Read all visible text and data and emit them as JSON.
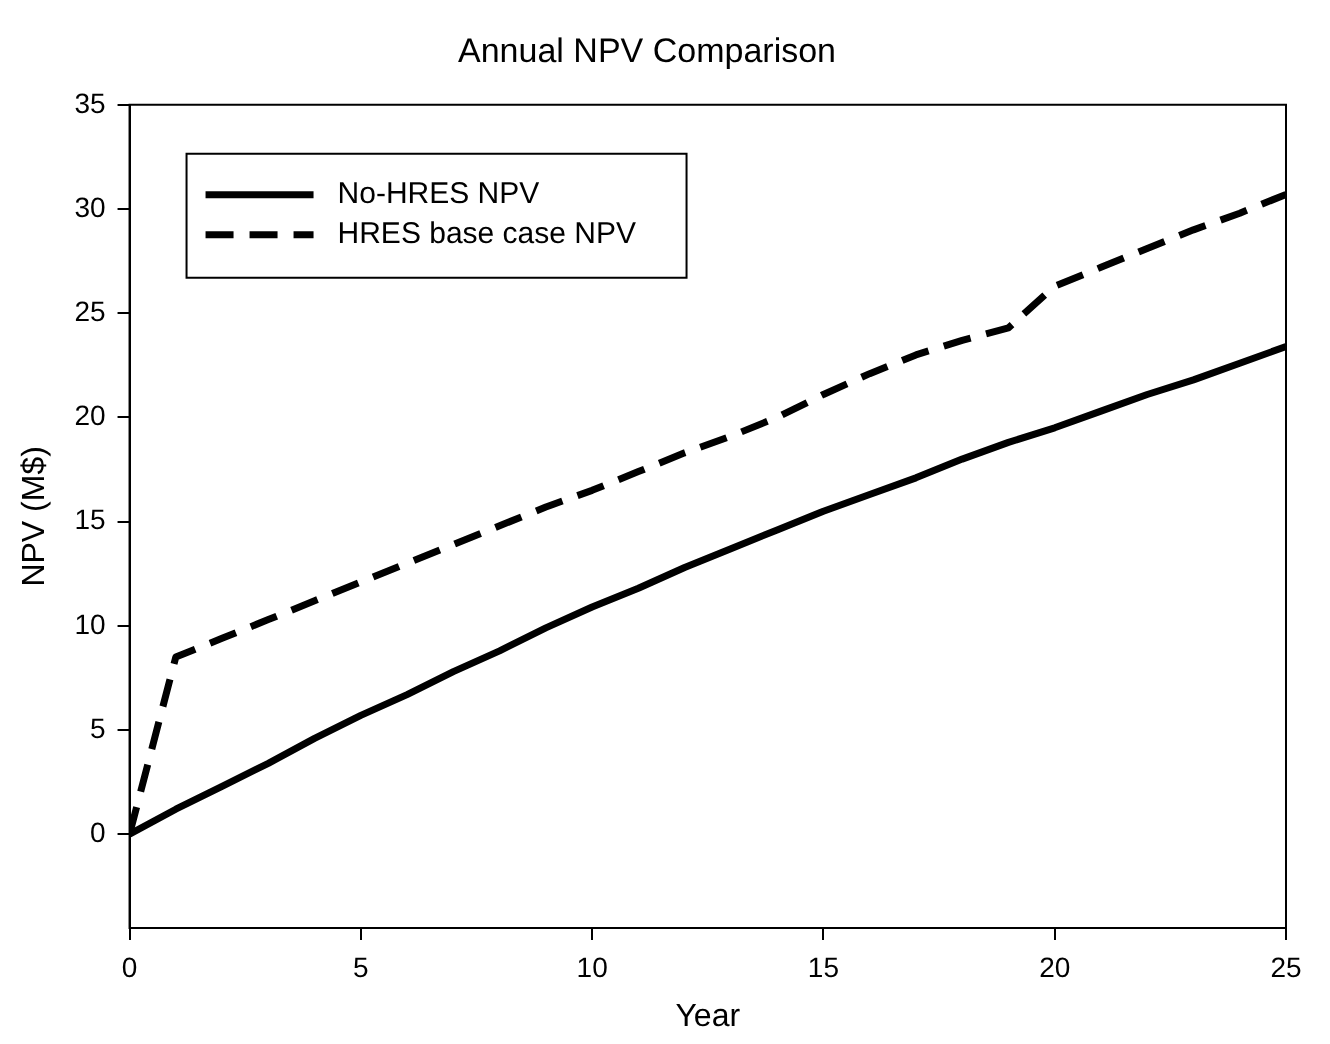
{
  "chart_data": {
    "type": "line",
    "title": "Annual NPV Comparison",
    "xlabel": "Year",
    "ylabel": "NPV (M$)",
    "x": [
      0,
      1,
      2,
      3,
      4,
      5,
      6,
      7,
      8,
      9,
      10,
      11,
      12,
      13,
      14,
      15,
      16,
      17,
      18,
      19,
      20,
      21,
      22,
      23,
      24,
      25
    ],
    "series": [
      {
        "name": "No-HRES NPV",
        "color": "#000000",
        "line_style": "solid",
        "values": [
          0,
          1.2,
          2.3,
          3.4,
          4.6,
          5.7,
          6.7,
          7.8,
          8.8,
          9.9,
          10.9,
          11.8,
          12.8,
          13.7,
          14.6,
          15.5,
          16.3,
          17.1,
          18.0,
          18.8,
          19.5,
          20.3,
          21.1,
          21.8,
          22.6,
          23.4
        ]
      },
      {
        "name": "HRES base case NPV",
        "color": "#000000",
        "line_style": "dashed",
        "values": [
          0,
          8.5,
          9.4,
          10.3,
          11.2,
          12.1,
          13.0,
          13.9,
          14.8,
          15.7,
          16.5,
          17.4,
          18.3,
          19.1,
          20.0,
          21.1,
          22.1,
          23.0,
          23.7,
          24.3,
          26.3,
          27.2,
          28.1,
          29.0,
          29.8,
          30.7
        ]
      }
    ],
    "xlim": [
      0,
      25
    ],
    "xticks": [
      0,
      5,
      10,
      15,
      20,
      25
    ],
    "ylim": [
      -4.5,
      35
    ],
    "yticks": [
      0,
      5,
      10,
      15,
      20,
      25,
      30,
      35
    ],
    "grid": false,
    "legend": "top left",
    "marker": "none"
  }
}
